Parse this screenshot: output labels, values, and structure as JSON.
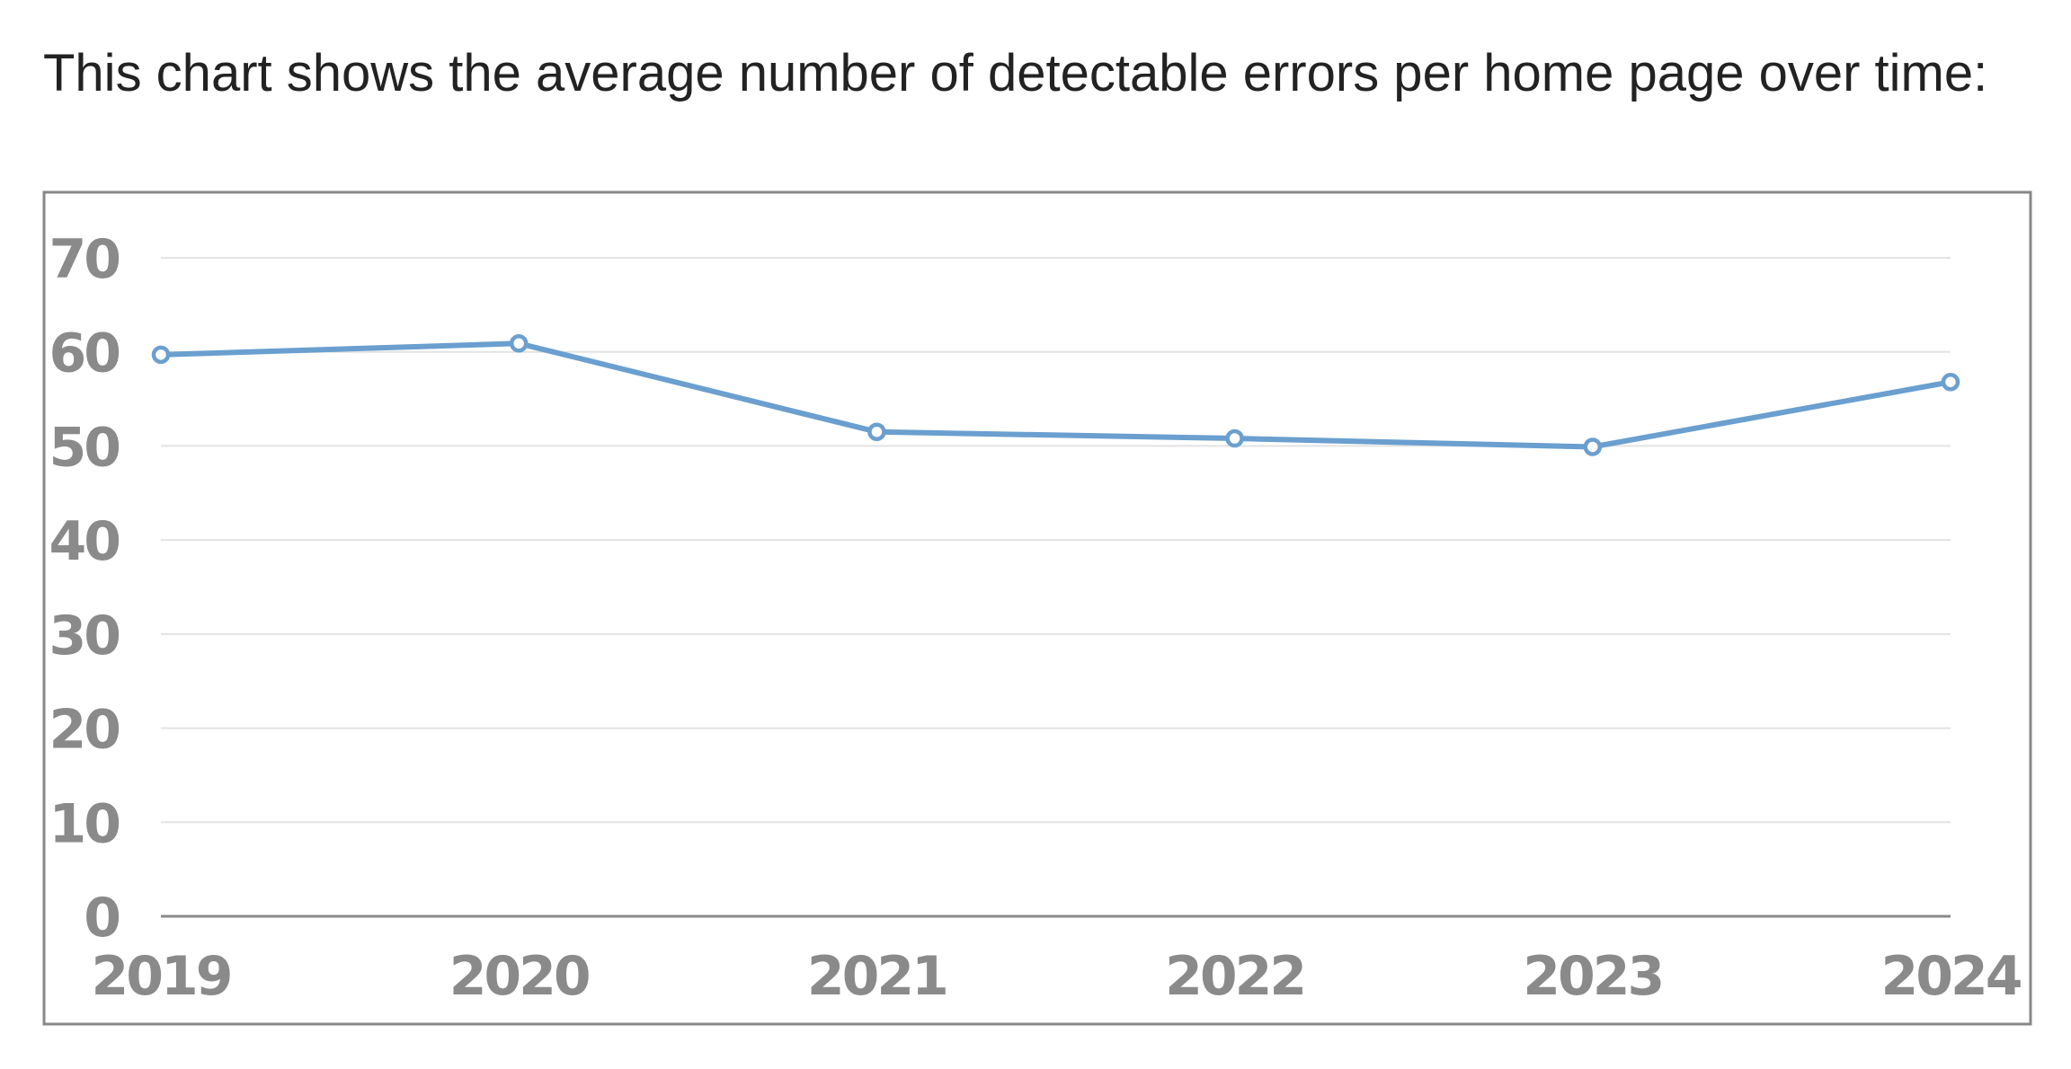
{
  "intro": "This chart shows the average number of detectable errors per home page over time:",
  "chart_data": {
    "type": "line",
    "categories": [
      "2019",
      "2020",
      "2021",
      "2022",
      "2023",
      "2024"
    ],
    "series": [
      {
        "color": "#6a9fcf",
        "values": [
          59.7,
          60.9,
          51.5,
          50.8,
          49.9,
          56.8
        ]
      }
    ],
    "ylim": [
      0,
      70
    ],
    "yticks": [
      0,
      10,
      20,
      30,
      40,
      50,
      60,
      70
    ],
    "grid": true
  }
}
